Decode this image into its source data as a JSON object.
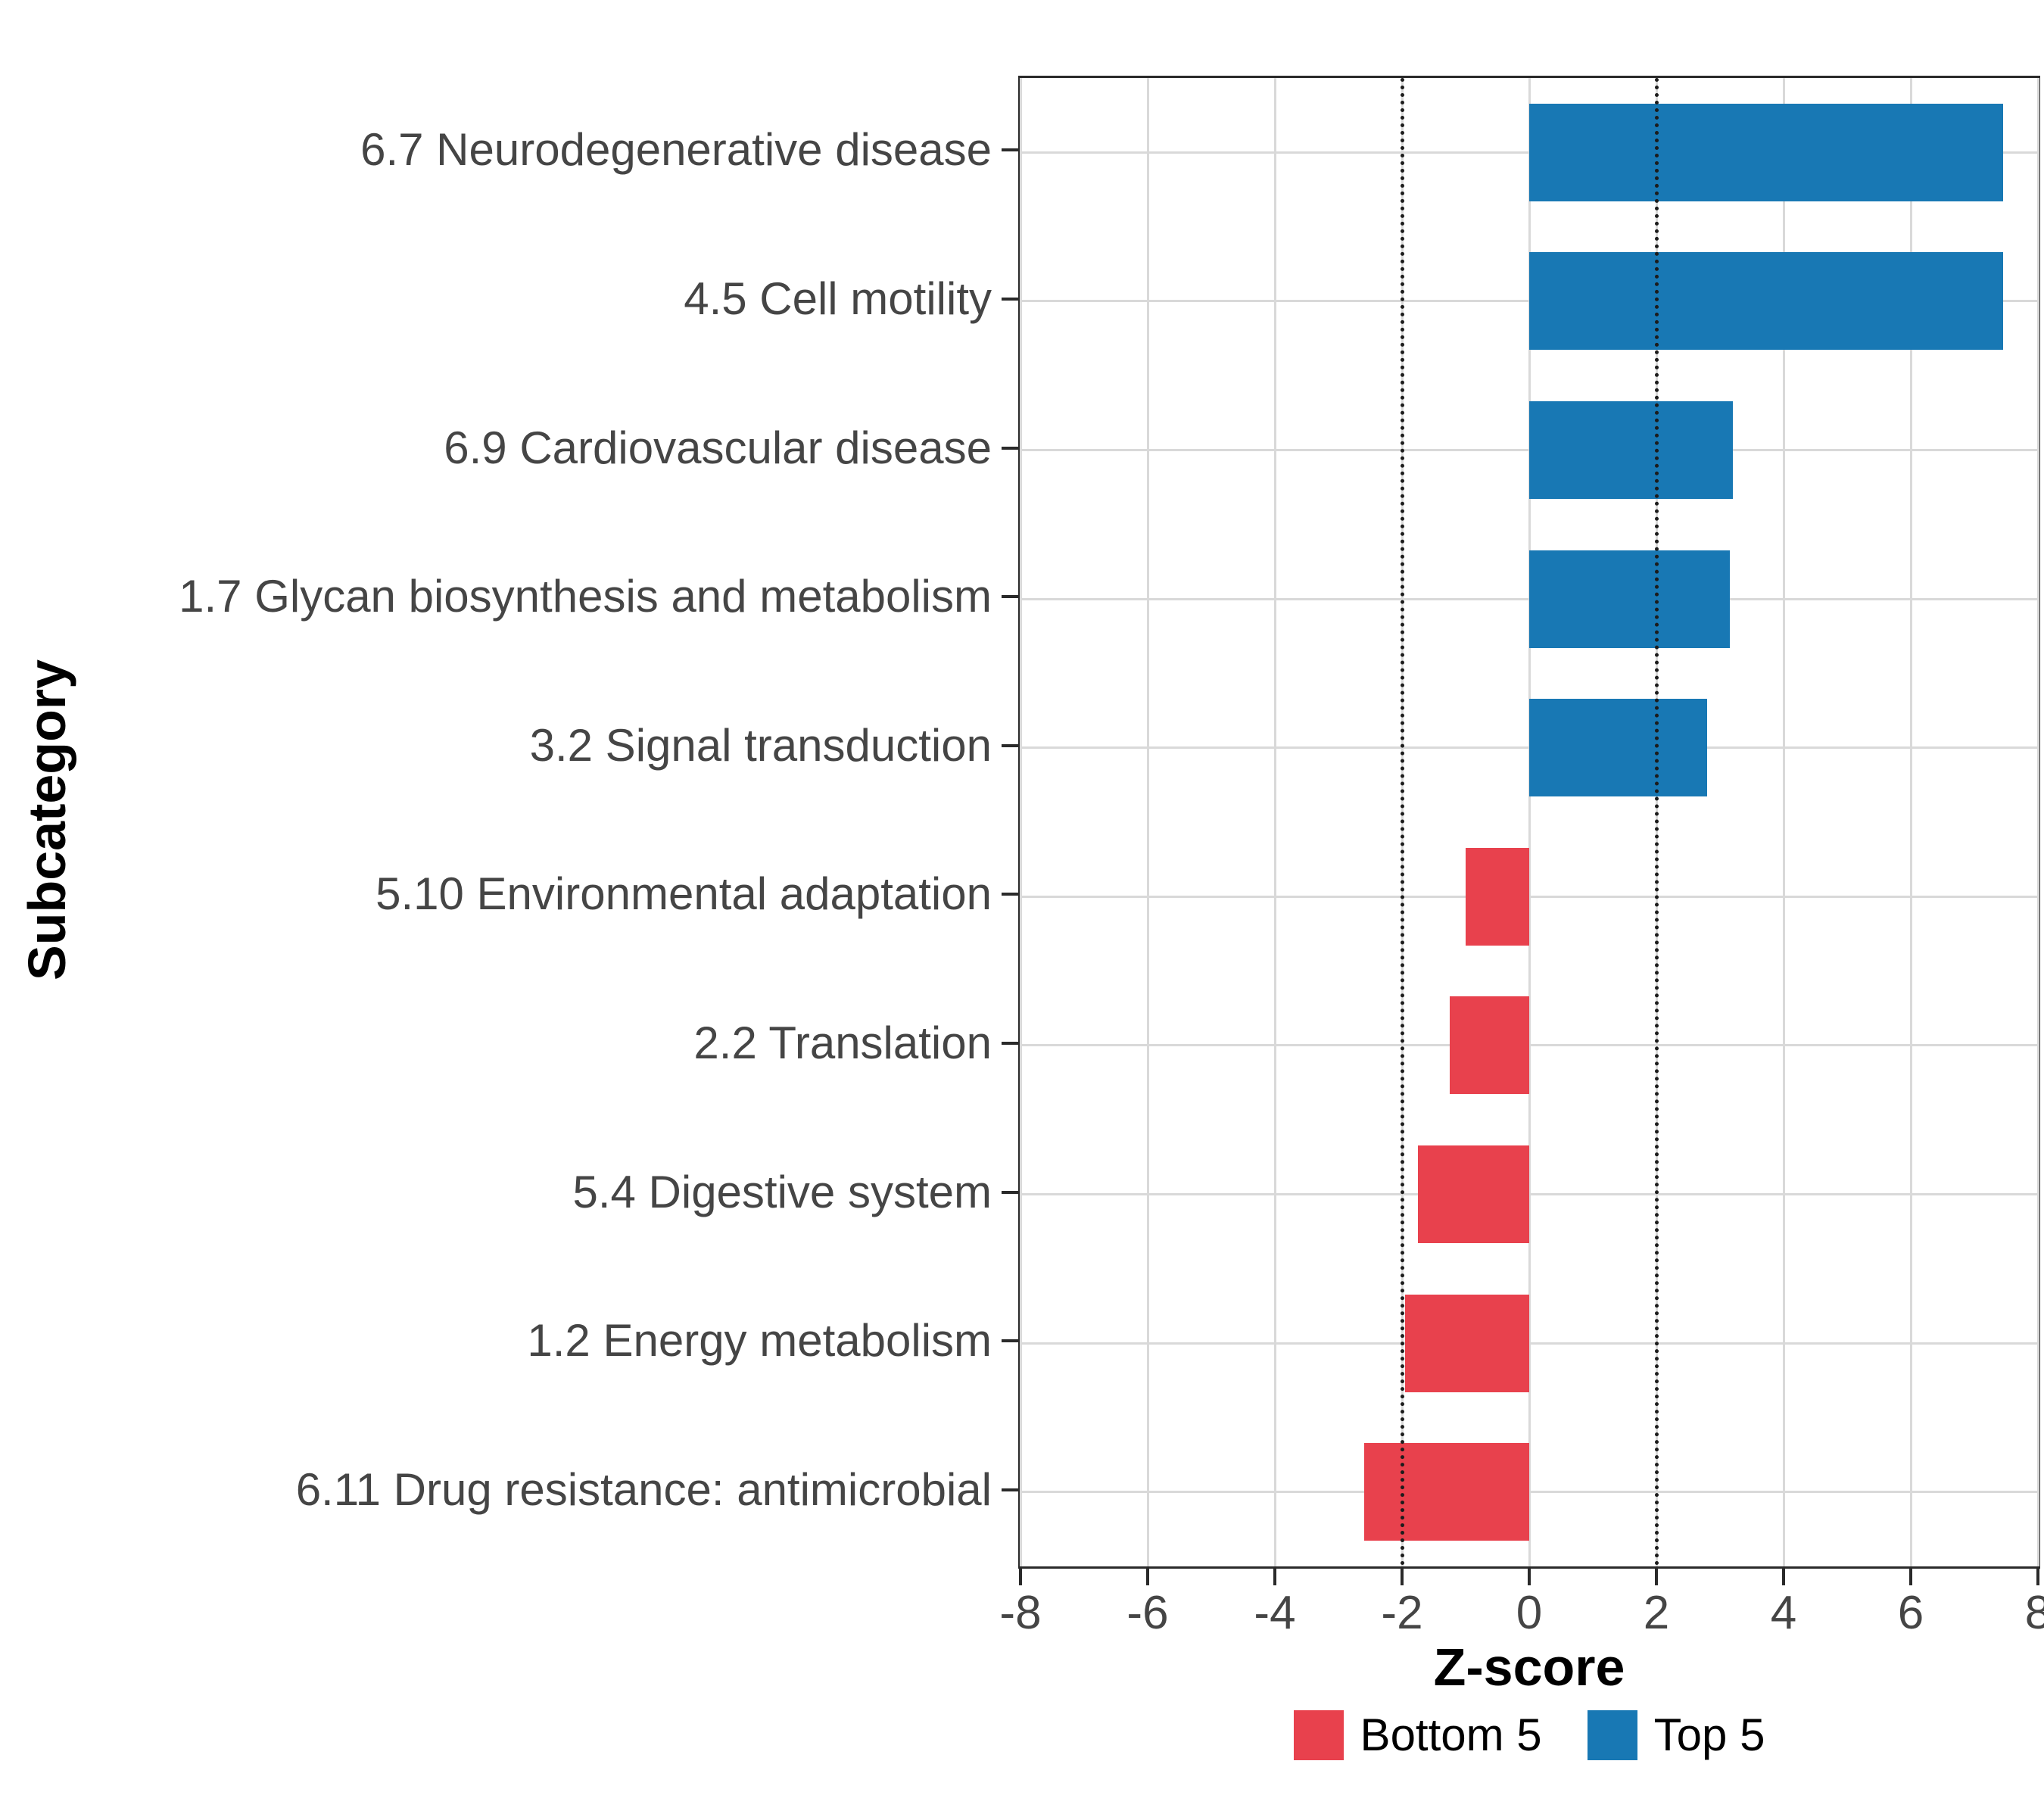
{
  "chart_data": {
    "type": "bar",
    "orientation": "horizontal",
    "xlabel": "Z-score",
    "ylabel": "Subcategory",
    "xlim": [
      -8,
      8
    ],
    "xticks": [
      -8,
      -6,
      -4,
      -2,
      0,
      2,
      4,
      6,
      8
    ],
    "reference_lines": [
      -2,
      2
    ],
    "grid": true,
    "legend_position": "bottom",
    "categories": [
      "6.7 Neurodegenerative disease",
      "4.5 Cell motility",
      "6.9 Cardiovascular disease",
      "1.7 Glycan biosynthesis and metabolism",
      "3.2 Signal transduction",
      "5.10 Environmental adaptation",
      "2.2 Translation",
      "5.4 Digestive system",
      "1.2 Energy metabolism",
      "6.11 Drug resistance: antimicrobial"
    ],
    "values": [
      7.45,
      7.45,
      3.2,
      3.15,
      2.8,
      -1.0,
      -1.25,
      -1.75,
      -1.95,
      -2.6
    ],
    "colors": {
      "bottom5": "#E8414D",
      "top5": "#1878B4"
    },
    "legend": [
      {
        "label": "Bottom 5",
        "color": "#E8414D"
      },
      {
        "label": "Top 5",
        "color": "#1878B4"
      }
    ]
  }
}
